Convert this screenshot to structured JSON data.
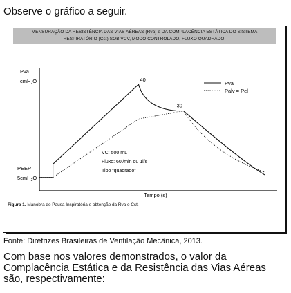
{
  "intro": "Observe o gráfico a seguir.",
  "figure": {
    "title_line1": "MENSURAÇÃO DA RESISTÊNCIA DAS VIAS AÉREAS (Rva) e DA COMPLACÊNCIA ESTÁTICA DO SISTEMA",
    "title_line2": "RESPIRATÓRIO (Cst) SOB VCV, MODO CONTROLADO, FLUXO QUADRADO.",
    "caption_bold": "Figura 1.",
    "caption_text": "Manobra de Pausa Inspiratória e obtenção da Rva e Cst."
  },
  "chart_data": {
    "type": "line",
    "title": "MENSURAÇÃO DA RESISTÊNCIA DAS VIAS AÉREAS (Rva) e DA COMPLACÊNCIA ESTÁTICA DO SISTEMA RESPIRATÓRIO (Cst) SOB VCV, MODO CONTROLADO, FLUXO QUADRADO.",
    "xlabel": "Tempo (s)",
    "ylabel": "Pva cmH2O",
    "y_axis_labels": {
      "top_line1": "Pva",
      "top_line2": "cmH",
      "top_sub": "2",
      "top_line3": "O",
      "bottom_line1": "PEEP",
      "bottom_line2": "5cmH",
      "bottom_sub": "2",
      "bottom_line3": "O"
    },
    "ylim": [
      0,
      46
    ],
    "xlim": [
      0,
      10
    ],
    "grid": false,
    "legend_position": "top-right",
    "series": [
      {
        "name": "Pva",
        "style": "solid",
        "points": [
          [
            0,
            5
          ],
          [
            0.6,
            5
          ],
          [
            0.6,
            10
          ],
          [
            4.4,
            40
          ],
          [
            4.7,
            33
          ],
          [
            5.1,
            31
          ],
          [
            6.1,
            30
          ],
          [
            6.4,
            30
          ],
          [
            9.0,
            11
          ],
          [
            10.0,
            6
          ]
        ]
      },
      {
        "name": "Palv = Pel",
        "style": "dotted",
        "points": [
          [
            0,
            5
          ],
          [
            0.6,
            5
          ],
          [
            4.4,
            27
          ],
          [
            6.4,
            30
          ],
          [
            10.0,
            7
          ]
        ]
      }
    ],
    "annotations": [
      "40",
      "30"
    ],
    "info_text": [
      "VC: 500 mL",
      "Fluxo: 60l/min ou 1l/s",
      "Tipo “quadrado”"
    ],
    "colors": {
      "line": "#111111",
      "title_band": "#bdbdbd"
    }
  },
  "source": "Fonte: Diretrizes Brasileiras de Ventilação Mecânica, 2013.",
  "question": "Com base nos valores demonstrados, o valor da Complacência Estática e da Resistência das Vias Aéreas são, respectivamente:"
}
